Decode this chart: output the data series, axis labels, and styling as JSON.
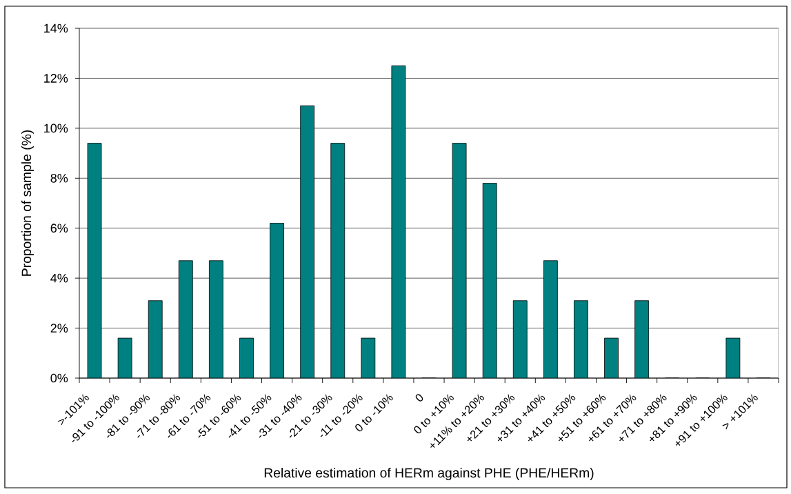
{
  "chart_data": {
    "type": "bar",
    "xlabel": "Relative estimation of HERm against PHE (PHE/HERm)",
    "ylabel": "Proportion of sample (%)",
    "categories": [
      ">-101%",
      "-91 to -100%",
      "-81 to -90%",
      "-71 to -80%",
      "-61 to -70%",
      "-51 to -60%",
      "-41 to -50%",
      "-31 to -40%",
      "-21 to -30%",
      "-11 to -20%",
      "0 to -10%",
      "0",
      "0 to +10%",
      "+11% to +20%",
      "+21 to +30%",
      "+31 to +40%",
      "+41 to +50%",
      "+51 to +60%",
      "+61 to +70%",
      "+71 to +80%",
      "+81 to +90%",
      "+91 to +100%",
      "> +101%"
    ],
    "values": [
      9.4,
      1.6,
      3.1,
      4.7,
      4.7,
      1.6,
      6.2,
      10.9,
      9.4,
      1.6,
      12.5,
      0,
      9.4,
      7.8,
      3.1,
      4.7,
      3.1,
      1.6,
      3.1,
      0,
      0,
      1.6,
      0
    ],
    "color": "#008080",
    "ylim": [
      0,
      14
    ],
    "yticks": [
      {
        "value": 0,
        "label": "0%"
      },
      {
        "value": 2,
        "label": "2%"
      },
      {
        "value": 4,
        "label": "4%"
      },
      {
        "value": 6,
        "label": "6%"
      },
      {
        "value": 8,
        "label": "8%"
      },
      {
        "value": 10,
        "label": "10%"
      },
      {
        "value": 12,
        "label": "12%"
      },
      {
        "value": 14,
        "label": "14%"
      }
    ],
    "grid": "y"
  }
}
